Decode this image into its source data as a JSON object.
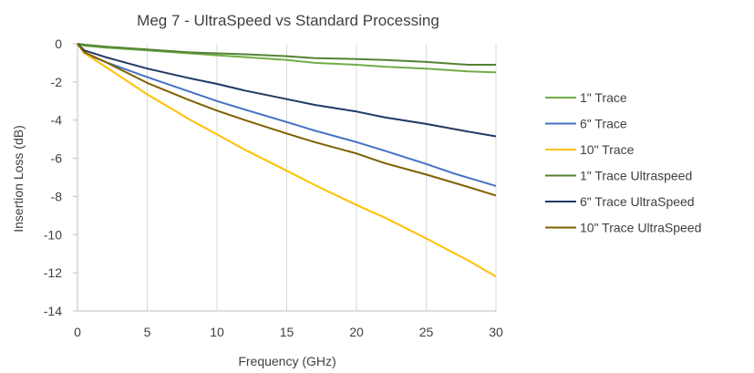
{
  "chart_data": {
    "type": "line",
    "title": "Meg 7 - UltraSpeed vs Standard Processing",
    "xlabel": "Frequency (GHz)",
    "ylabel": "Insertion Loss (dB)",
    "xlim": [
      0,
      30
    ],
    "ylim": [
      -14,
      0
    ],
    "xticks": [
      "0",
      "5",
      "10",
      "15",
      "20",
      "25",
      "30"
    ],
    "yticks": [
      "0",
      "-2",
      "-4",
      "-6",
      "-8",
      "-10",
      "-12",
      "-14"
    ],
    "grid": "vertical",
    "legend_position": "right",
    "series": [
      {
        "name": "1\" Trace",
        "color": "#70AD47",
        "x": [
          0,
          0.5,
          2,
          5,
          8,
          10,
          12,
          15,
          17,
          20,
          22,
          25,
          28,
          30
        ],
        "y": [
          0,
          -0.1,
          -0.2,
          -0.35,
          -0.5,
          -0.6,
          -0.7,
          -0.85,
          -1.0,
          -1.1,
          -1.2,
          -1.3,
          -1.45,
          -1.5
        ]
      },
      {
        "name": "6\" Trace",
        "color": "#4472C4",
        "x": [
          0,
          0.5,
          2,
          5,
          8,
          10,
          12,
          15,
          17,
          20,
          22,
          25,
          27,
          30
        ],
        "y": [
          0,
          -0.5,
          -0.95,
          -1.75,
          -2.5,
          -3.0,
          -3.45,
          -4.1,
          -4.55,
          -5.15,
          -5.6,
          -6.3,
          -6.8,
          -7.45
        ]
      },
      {
        "name": "10\" Trace",
        "color": "#FFC000",
        "x": [
          0,
          0.5,
          2,
          5,
          8,
          10,
          12,
          15,
          17,
          20,
          22,
          25,
          28,
          30
        ],
        "y": [
          0,
          -0.5,
          -1.2,
          -2.65,
          -3.95,
          -4.75,
          -5.55,
          -6.65,
          -7.4,
          -8.45,
          -9.1,
          -10.2,
          -11.35,
          -12.2
        ]
      },
      {
        "name": "1\" Trace Ultraspeed",
        "color": "#548235",
        "x": [
          0,
          0.5,
          2,
          5,
          8,
          10,
          12,
          15,
          17,
          20,
          22,
          25,
          28,
          30
        ],
        "y": [
          0,
          -0.05,
          -0.15,
          -0.3,
          -0.45,
          -0.5,
          -0.55,
          -0.65,
          -0.75,
          -0.8,
          -0.85,
          -0.95,
          -1.1,
          -1.1
        ]
      },
      {
        "name": "6\" Trace UltraSpeed",
        "color": "#203864",
        "x": [
          0,
          0.5,
          2,
          5,
          8,
          10,
          12,
          15,
          17,
          20,
          22,
          25,
          28,
          30
        ],
        "y": [
          0,
          -0.35,
          -0.7,
          -1.3,
          -1.8,
          -2.1,
          -2.45,
          -2.9,
          -3.2,
          -3.55,
          -3.85,
          -4.2,
          -4.6,
          -4.85
        ]
      },
      {
        "name": "10\" Trace UltraSpeed",
        "color": "#806000",
        "x": [
          0,
          0.5,
          2,
          5,
          8,
          10,
          12,
          15,
          17,
          20,
          22,
          25,
          28,
          30
        ],
        "y": [
          0,
          -0.45,
          -0.95,
          -2.05,
          -2.95,
          -3.5,
          -4.0,
          -4.7,
          -5.15,
          -5.75,
          -6.25,
          -6.85,
          -7.5,
          -7.95
        ]
      }
    ]
  }
}
